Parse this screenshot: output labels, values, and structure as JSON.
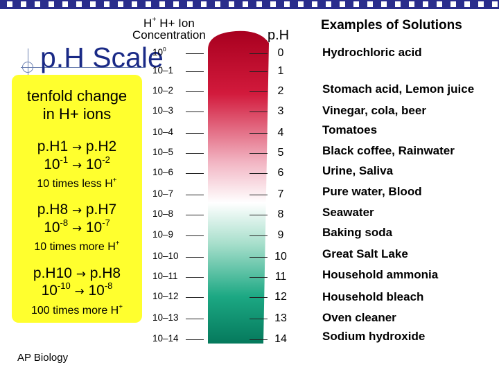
{
  "title": "p.H Scale",
  "headers": {
    "ion_line1": "H+ Ion",
    "ion_line2": "Concentration",
    "ph": "p.H",
    "examples": "Examples of Solutions"
  },
  "left_panel": {
    "tenfold_line1": "tenfold change",
    "tenfold_line2": "in H+ ions",
    "ex1_ph_from": "p.H1",
    "ex1_ph_to": "p.H2",
    "ex1_conc_from_base": "10",
    "ex1_conc_from_exp": "-1",
    "ex1_conc_to_base": "10",
    "ex1_conc_to_exp": "-2",
    "ex1_note": "10 times less H",
    "ex2_ph_from": "p.H8",
    "ex2_ph_to": "p.H7",
    "ex2_conc_from_base": "10",
    "ex2_conc_from_exp": "-8",
    "ex2_conc_to_base": "10",
    "ex2_conc_to_exp": "-7",
    "ex2_note": "10 times more H",
    "ex3_ph_from": "p.H10",
    "ex3_ph_to": "p.H8",
    "ex3_conc_from_base": "10",
    "ex3_conc_from_exp": "-10",
    "ex3_conc_to_base": "10",
    "ex3_conc_to_exp": "-8",
    "ex3_note": "100 times more H",
    "plus": "+",
    "arrow": "→"
  },
  "scale": {
    "concentrations": [
      "10",
      "10–1",
      "10–2",
      "10–3",
      "10–4",
      "10–5",
      "10–6",
      "10–7",
      "10–8",
      "10–9",
      "10–10",
      "10–11",
      "10–12",
      "10–13",
      "10–14"
    ],
    "first_exponent": "0",
    "ph_values": [
      "0",
      "1",
      "2",
      "3",
      "4",
      "5",
      "6",
      "7",
      "8",
      "9",
      "10",
      "11",
      "12",
      "13",
      "14"
    ],
    "examples": [
      {
        "ph": "0",
        "label": "Hydrochloric acid"
      },
      {
        "ph": "2",
        "label": "Stomach acid, Lemon juice"
      },
      {
        "ph": "3",
        "label": "Vinegar, cola, beer"
      },
      {
        "ph": "4",
        "label": "Tomatoes"
      },
      {
        "ph": "5",
        "label": "Black coffee, Rainwater"
      },
      {
        "ph": "6",
        "label": "Urine, Saliva"
      },
      {
        "ph": "7",
        "label": "Pure water, Blood"
      },
      {
        "ph": "8",
        "label": "Seawater"
      },
      {
        "ph": "9",
        "label": "Baking soda"
      },
      {
        "ph": "10",
        "label": "Great Salt Lake"
      },
      {
        "ph": "11",
        "label": "Household ammonia"
      },
      {
        "ph": "12",
        "label": "Household bleach"
      },
      {
        "ph": "13",
        "label": "Oven cleaner"
      },
      {
        "ph": "14",
        "label": "Sodium hydroxide"
      }
    ]
  },
  "footer": "AP Biology",
  "colors": {
    "topbar": "#2a2d8c",
    "title": "#1a2a86",
    "panel": "#ffff2e",
    "acid_red": "#c8102e",
    "neutral_white": "#ffffff",
    "base_green": "#0d9a78"
  }
}
